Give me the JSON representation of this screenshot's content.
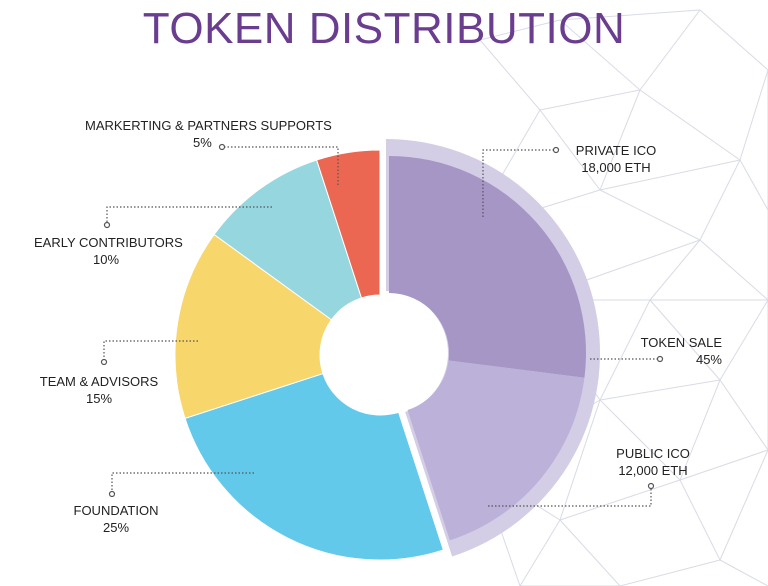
{
  "title": "TOKEN DISTRIBUTION",
  "colors": {
    "title": "#6a3d8f",
    "private_ico": "#a696c6",
    "public_ico": "#bcb1d9",
    "token_sale_ring": "#d4cde6",
    "foundation": "#63c9ea",
    "team_advisors": "#f7d66c",
    "early_contributors": "#96d6de",
    "marketing": "#ec6752",
    "leader_line": "#555555",
    "background_network": "#d8dbe6"
  },
  "labels": {
    "marketing": {
      "name": "MARKERTING & PARTNERS SUPPORTS",
      "value": "5%"
    },
    "early": {
      "name": "EARLY CONTRIBUTORS",
      "value": "10%"
    },
    "team": {
      "name": "TEAM & ADVISORS",
      "value": "15%"
    },
    "foundation": {
      "name": "FOUNDATION",
      "value": "25%"
    },
    "private_ico": {
      "name": "PRIVATE ICO",
      "value": "18,000 ETH"
    },
    "token_sale": {
      "name": "TOKEN SALE",
      "value": "45%"
    },
    "public_ico": {
      "name": "PUBLIC ICO",
      "value": "12,000 ETH"
    }
  },
  "chart_data": {
    "type": "pie",
    "title": "TOKEN DISTRIBUTION",
    "donut": true,
    "start": "top, clockwise",
    "slices": [
      {
        "name": "PRIVATE ICO",
        "value": 27,
        "note": "18,000 ETH",
        "group": "TOKEN SALE"
      },
      {
        "name": "PUBLIC ICO",
        "value": 18,
        "note": "12,000 ETH",
        "group": "TOKEN SALE"
      },
      {
        "name": "FOUNDATION",
        "value": 25
      },
      {
        "name": "TEAM & ADVISORS",
        "value": 15
      },
      {
        "name": "EARLY CONTRIBUTORS",
        "value": 10
      },
      {
        "name": "MARKERTING & PARTNERS SUPPORTS",
        "value": 5
      }
    ],
    "groups": [
      {
        "name": "TOKEN SALE",
        "value": 45
      }
    ]
  }
}
